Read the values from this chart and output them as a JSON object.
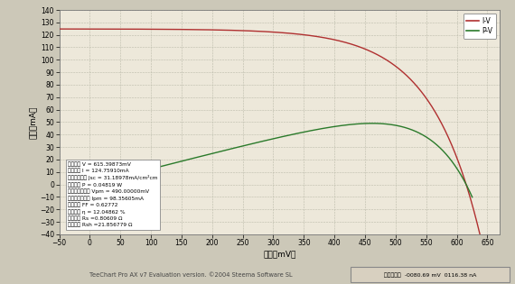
{
  "title": "",
  "xlabel": "电压（mV）",
  "ylabel": "电流（mA）",
  "xlim": [
    -50,
    670
  ],
  "ylim": [
    -40,
    140
  ],
  "xticks": [
    -50,
    0,
    50,
    100,
    150,
    200,
    250,
    300,
    350,
    400,
    450,
    500,
    550,
    600,
    650
  ],
  "yticks": [
    -40,
    -30,
    -20,
    -10,
    0,
    10,
    20,
    30,
    40,
    50,
    60,
    70,
    80,
    90,
    100,
    110,
    120,
    130,
    140
  ],
  "iv_color": "#b03030",
  "pv_color": "#2a7a2a",
  "background_color": "#ede8da",
  "outer_bg": "#ccc8b8",
  "grid_color": "#bbbbaa",
  "annotation_lines": [
    "开路电压 V = 615.39873mV",
    "短路电流 I = 124.75910mA",
    "短路电流密度 Jsc = 31.18978mA/cm²cm",
    "最大功率 P = 0.04819 W",
    "最大功率点电压 Vpm = 490.00000mV",
    "最大功率点电流 Ipm = 98.35605mA",
    "填充因子 FF = 0.62772",
    "转换效率 η = 12.04862 %",
    "串联电阻 Rs =0.80609 Ω",
    "并联电阻 Rsh =21.856779 Ω"
  ],
  "legend_iv": "I-V",
  "legend_pv": "P-V",
  "footer_text": "TeeChart Pro AX v7 Evaluation version. ©2004 Steema Software SL",
  "status_text": "当前坐标：  -0080.69 mV  0116.38 nA",
  "Voc": 615.39873,
  "Isc": 124.7591,
  "Vmp": 490.0,
  "Imp": 98.35605
}
